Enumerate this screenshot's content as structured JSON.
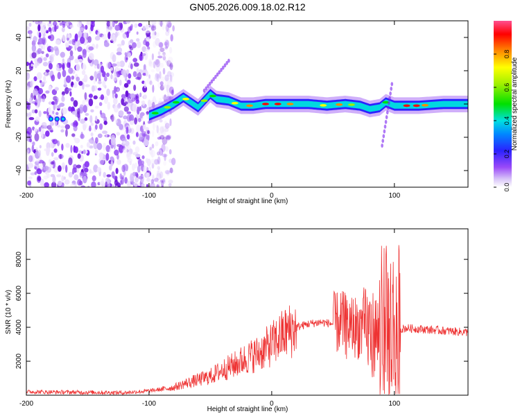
{
  "title": "GN05.2026.009.18.02.R12",
  "colors": {
    "red": "#ee3333",
    "purple": "#7a1ff0",
    "axis": "#000000"
  },
  "chart_data": [
    {
      "type": "heatmap",
      "name": "spectrogram",
      "xlabel": "Height of straight line (km)",
      "ylabel": "Frequency (Hz)",
      "xlim": [
        -200,
        160
      ],
      "ylim": [
        -50,
        50
      ],
      "xticks": [
        -200,
        -100,
        0,
        100
      ],
      "xtick_labels": [
        "-200",
        "-100",
        "0",
        "100"
      ],
      "yticks": [
        -40,
        -20,
        0,
        20,
        40
      ],
      "ytick_labels": [
        "-40",
        "-20",
        "0",
        "20",
        "40"
      ],
      "colorbar": {
        "label": "Normalized spectral amplitude",
        "range": [
          0,
          1
        ],
        "ticks": [
          0,
          0.2,
          0.4,
          0.6,
          0.8
        ],
        "tick_labels": [
          "0.0",
          "0.2",
          "0.4",
          "0.6",
          "0.8"
        ]
      },
      "noise_region_x": [
        -200,
        -88
      ],
      "ridge": [
        [
          -180,
          -9
        ],
        [
          -170,
          -9
        ],
        [
          -100,
          -7
        ],
        [
          -90,
          -4
        ],
        [
          -80,
          0
        ],
        [
          -72,
          4
        ],
        [
          -60,
          -2
        ],
        [
          -50,
          6
        ],
        [
          -45,
          3
        ],
        [
          -35,
          2
        ],
        [
          -25,
          -1
        ],
        [
          -15,
          -1
        ],
        [
          -5,
          0
        ],
        [
          10,
          0
        ],
        [
          30,
          0
        ],
        [
          45,
          -1
        ],
        [
          60,
          0
        ],
        [
          72,
          -1
        ],
        [
          80,
          -3
        ],
        [
          88,
          -2
        ],
        [
          93,
          1
        ],
        [
          100,
          -1
        ],
        [
          110,
          -1
        ],
        [
          120,
          -1
        ],
        [
          140,
          0
        ],
        [
          160,
          0
        ]
      ]
    },
    {
      "type": "line",
      "name": "snr",
      "xlabel": "Height of straight line (km)",
      "ylabel": "SNR (10 * v/v)",
      "xlim": [
        -200,
        160
      ],
      "ylim": [
        0,
        9800
      ],
      "xticks": [
        -200,
        -100,
        0,
        100
      ],
      "xtick_labels": [
        "-200",
        "-100",
        "0",
        "100"
      ],
      "yticks": [
        2000,
        4000,
        6000,
        8000
      ],
      "ytick_labels": [
        "2000",
        "4000",
        "6000",
        "8000"
      ],
      "series": [
        {
          "name": "SNR",
          "color": "#ee3333",
          "envelope_x": [
            -200,
            -120,
            -100,
            -90,
            -80,
            -70,
            -60,
            -50,
            -40,
            -30,
            -20,
            -10,
            0,
            10,
            20,
            30,
            40,
            50,
            55,
            60,
            65,
            70,
            75,
            80,
            85,
            88,
            90,
            95,
            100,
            105,
            110,
            120,
            140,
            160
          ],
          "envelope_y": [
            200,
            150,
            250,
            350,
            450,
            700,
            900,
            1100,
            1500,
            1800,
            2200,
            2500,
            3000,
            3600,
            4000,
            4200,
            4300,
            4200,
            4300,
            4200,
            4100,
            4000,
            3900,
            3800,
            3600,
            3500,
            3900,
            4000,
            3800,
            3900,
            3950,
            3900,
            3800,
            3700
          ]
        }
      ]
    }
  ]
}
